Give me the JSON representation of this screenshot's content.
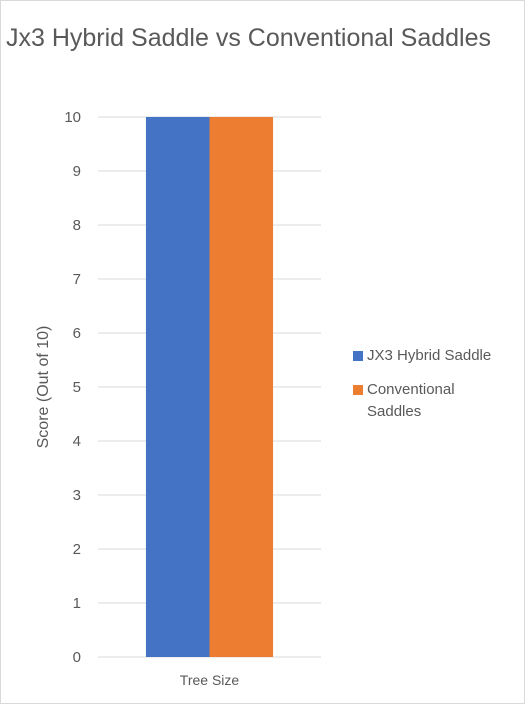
{
  "chart_data": {
    "type": "bar",
    "title": "Jx3 Hybrid Saddle vs Conventional Saddles",
    "categories": [
      "Tree Size"
    ],
    "series": [
      {
        "name": "JX3 Hybrid Saddle",
        "values": [
          10
        ],
        "color": "#4472C4"
      },
      {
        "name": "Conventional Saddles",
        "values": [
          10
        ],
        "color": "#ED7D31"
      }
    ],
    "xlabel": "",
    "ylabel": "Score (Out of 10)",
    "ylim": [
      0,
      10
    ],
    "yticks": [
      0,
      1,
      2,
      3,
      4,
      5,
      6,
      7,
      8,
      9,
      10
    ],
    "grid": true,
    "legend_position": "right",
    "gridline_color": "#d9d9d9"
  }
}
